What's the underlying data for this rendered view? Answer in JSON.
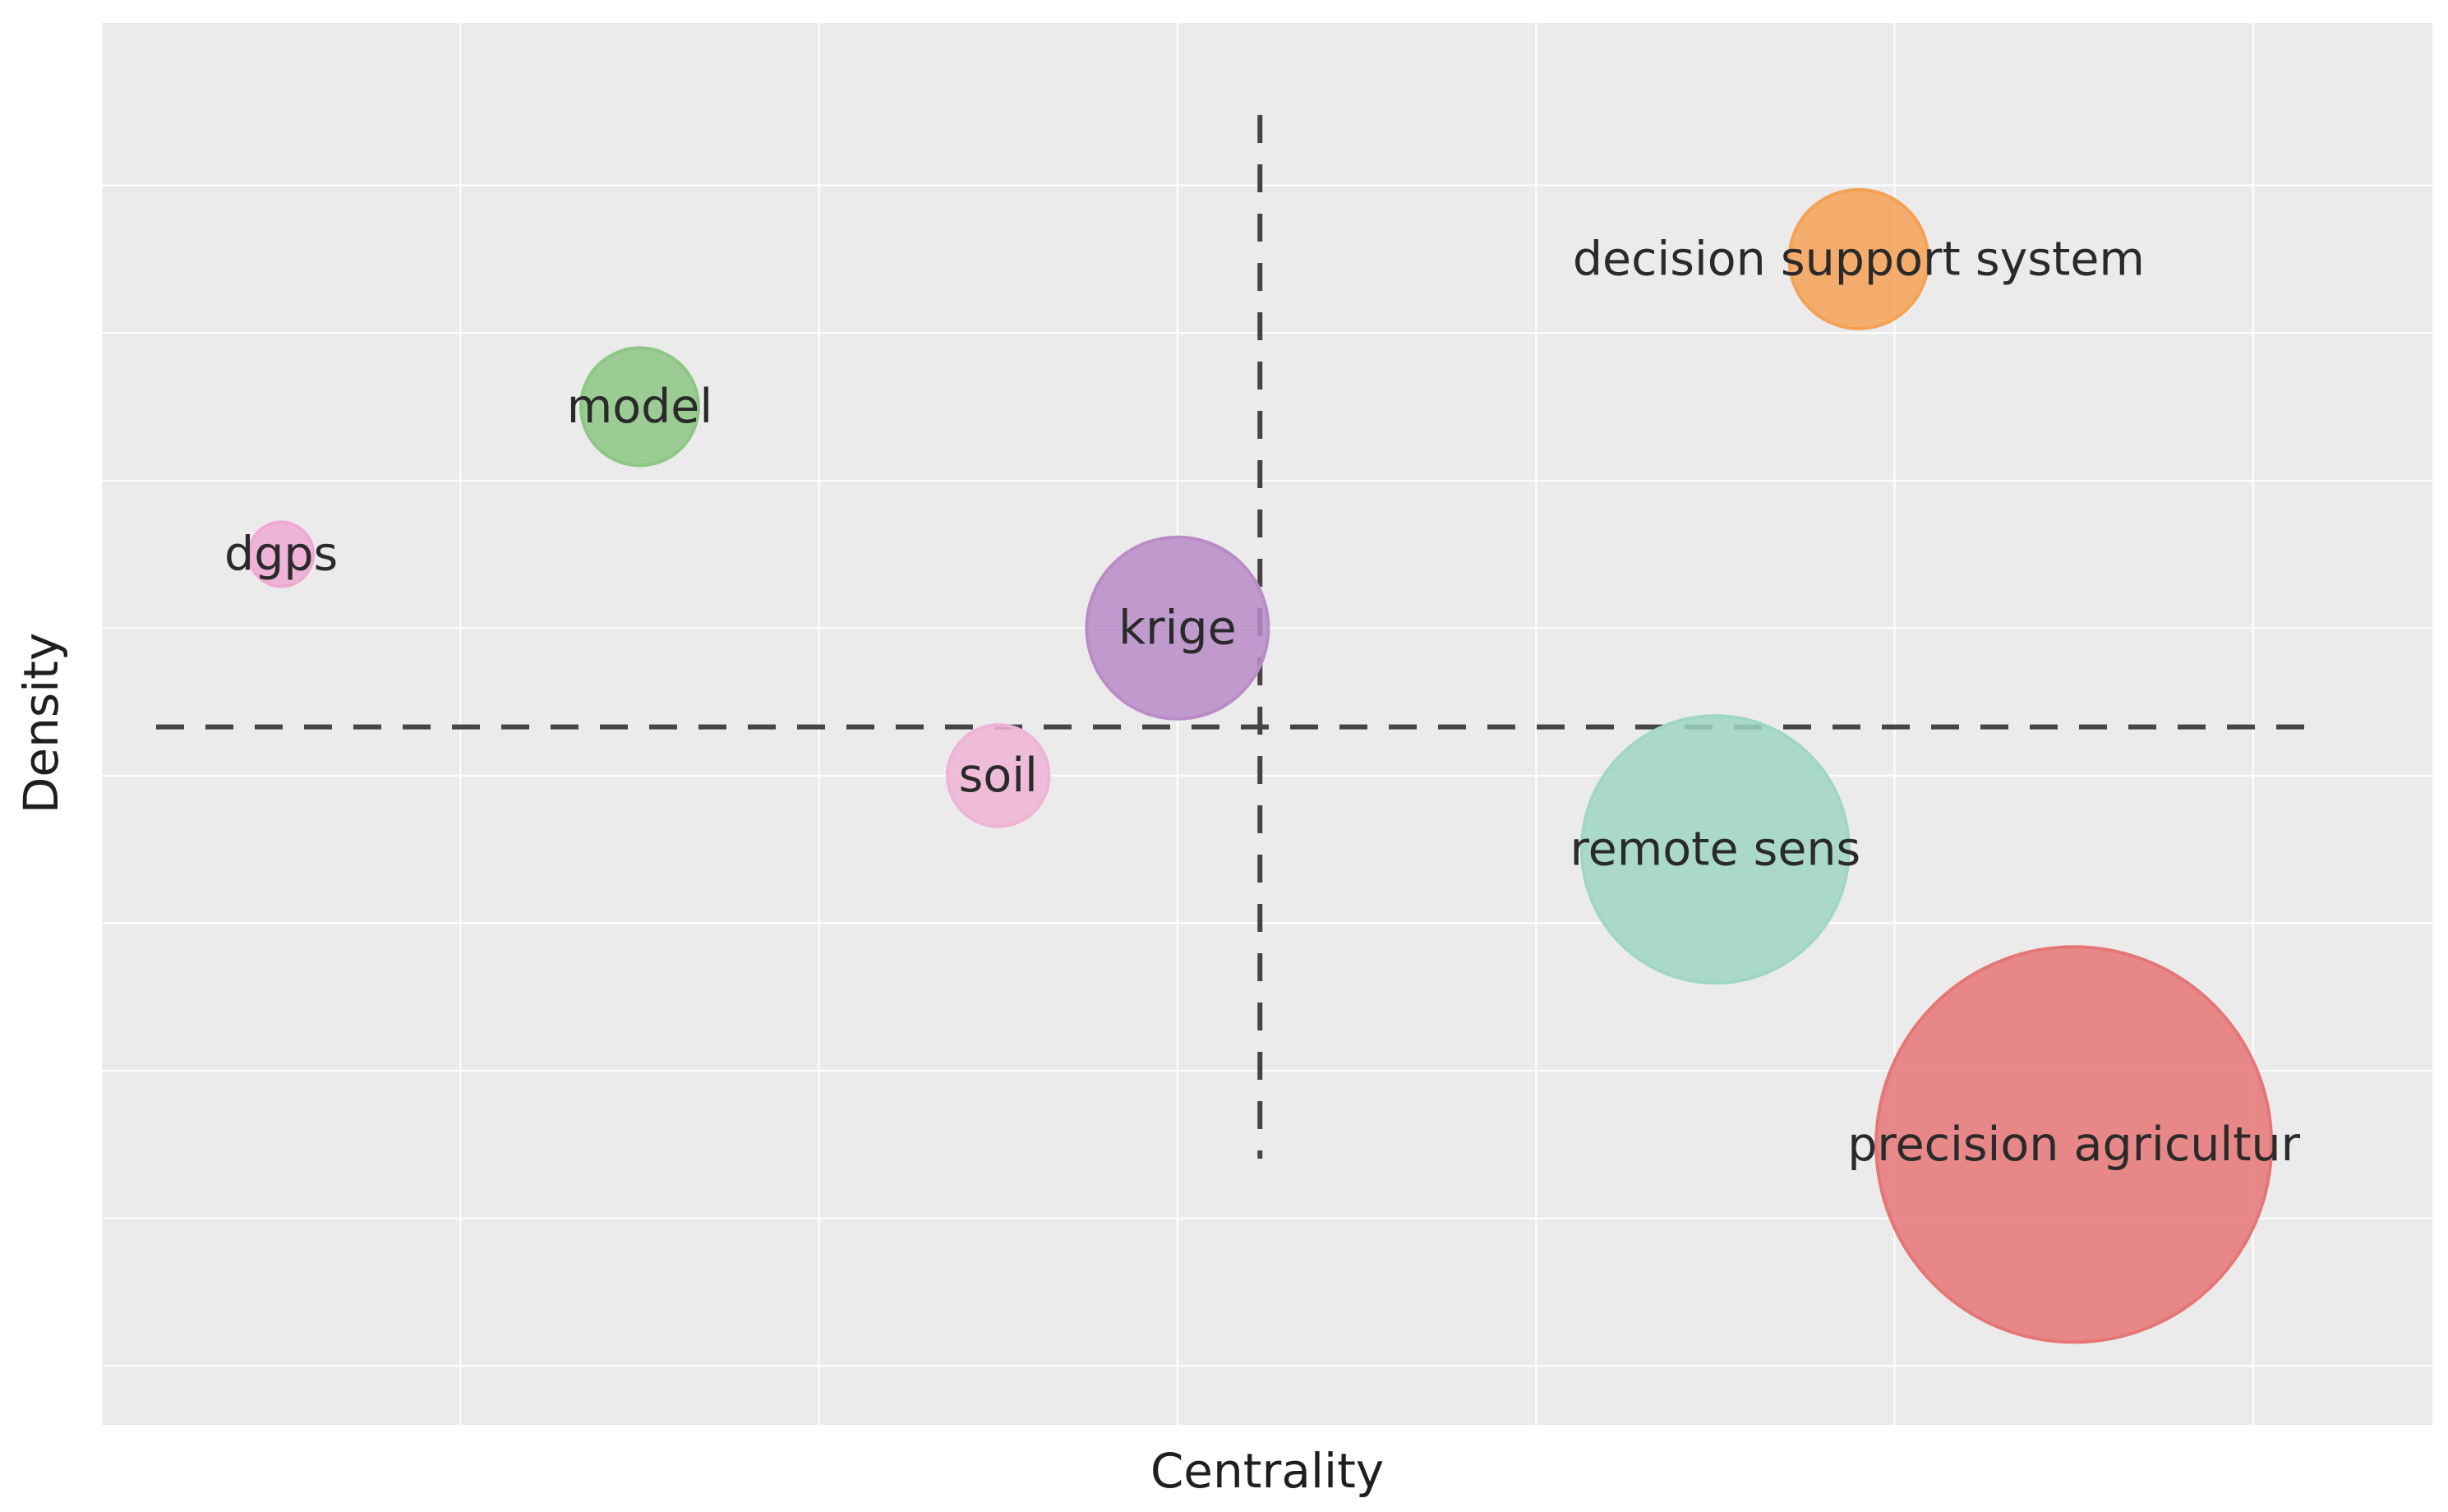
{
  "chart_data": {
    "type": "scatter",
    "title": "",
    "xlabel": "Centrality",
    "ylabel": "Density",
    "xlim": [
      0.5,
      7.0
    ],
    "ylim": [
      0.6,
      10.1
    ],
    "grid": true,
    "legend": "none",
    "threshold_lines": {
      "x": 3.73,
      "y": 5.33
    },
    "x_gridlines": [
      1.5,
      2.5,
      3.5,
      4.5,
      5.5,
      6.5
    ],
    "y_gridlines": [
      1.0,
      2.0,
      3.0,
      4.0,
      5.0,
      6.0,
      7.0,
      8.0,
      9.0
    ],
    "points": [
      {
        "label": "decision support system",
        "x": 5.4,
        "y": 8.5,
        "size": 1.3,
        "color": "#f4a155"
      },
      {
        "label": "model",
        "x": 2.0,
        "y": 7.5,
        "size": 1.1,
        "color": "#8cc784"
      },
      {
        "label": "dgps",
        "x": 1.0,
        "y": 6.5,
        "size": 0.6,
        "color": "#f0a9d3"
      },
      {
        "label": "krige",
        "x": 3.5,
        "y": 6.0,
        "size": 1.7,
        "color": "#b98cc8"
      },
      {
        "label": "soil",
        "x": 3.0,
        "y": 5.0,
        "size": 0.95,
        "color": "#efb3d6"
      },
      {
        "label": "remote sens",
        "x": 5.0,
        "y": 4.5,
        "size": 2.5,
        "color": "#9fd6c4"
      },
      {
        "label": "precision agricultur",
        "x": 6.0,
        "y": 2.5,
        "size": 3.7,
        "color": "#e67676"
      }
    ]
  },
  "colors": {
    "panel_bg": "#ebebeb",
    "grid": "#ffffff",
    "threshold": "#454545"
  }
}
